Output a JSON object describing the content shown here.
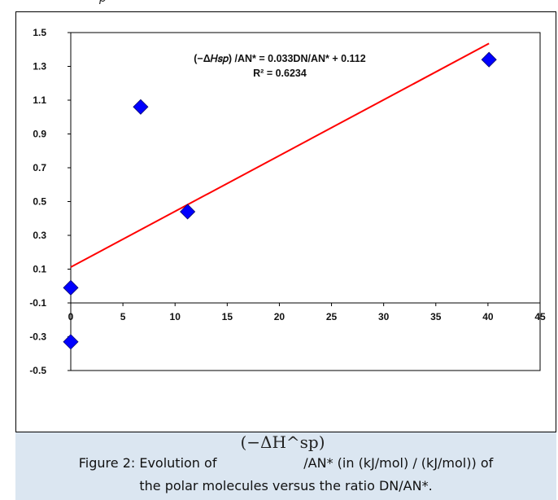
{
  "top_fragment": "p",
  "chart_data": {
    "type": "scatter",
    "title": "",
    "xlabel": "",
    "ylabel": "",
    "xlim": [
      0,
      45
    ],
    "ylim": [
      -0.5,
      1.5
    ],
    "x_ticks": [
      0,
      5,
      10,
      15,
      20,
      25,
      30,
      35,
      40,
      45
    ],
    "y_ticks": [
      -0.5,
      -0.3,
      -0.1,
      0.1,
      0.3,
      0.5,
      0.7,
      0.9,
      1.1,
      1.3,
      1.5
    ],
    "x_tick_labels": [
      "0",
      "5",
      "10",
      "15",
      "20",
      "25",
      "30",
      "35",
      "40",
      "45"
    ],
    "y_tick_labels": [
      "-0.5",
      "-0.3",
      "-0.1",
      "0.1",
      "0.3",
      "0.5",
      "0.7",
      "0.9",
      "1.1",
      "1.3",
      "1.5"
    ],
    "grid": false,
    "series": [
      {
        "marker": "diamond",
        "color": "#0000ff",
        "x": [
          0,
          0,
          6.7,
          11.2,
          40.1
        ],
        "y": [
          -0.01,
          -0.33,
          1.06,
          0.44,
          1.34
        ]
      }
    ],
    "trendline": {
      "color": "#ff0000",
      "slope": 0.033,
      "intercept": 0.112,
      "x_range": [
        0,
        40.1
      ]
    },
    "annotation": {
      "equation": "(−Δ𝐻𝑠𝑝) /AN* = 0.033DN/AN* + 0.112",
      "r_squared": "R² = 0.6234"
    }
  },
  "caption": {
    "formula": "(−ΔH^sp)",
    "line1": "Figure 2: Evolution of                     /AN* (in (kJ/mol) / (kJ/mol)) of",
    "line2": "the polar molecules versus the ratio DN/AN*."
  },
  "colors": {
    "caption_bg": "#dbe6f1",
    "marker": "#0000ff",
    "trendline": "#ff0000"
  }
}
